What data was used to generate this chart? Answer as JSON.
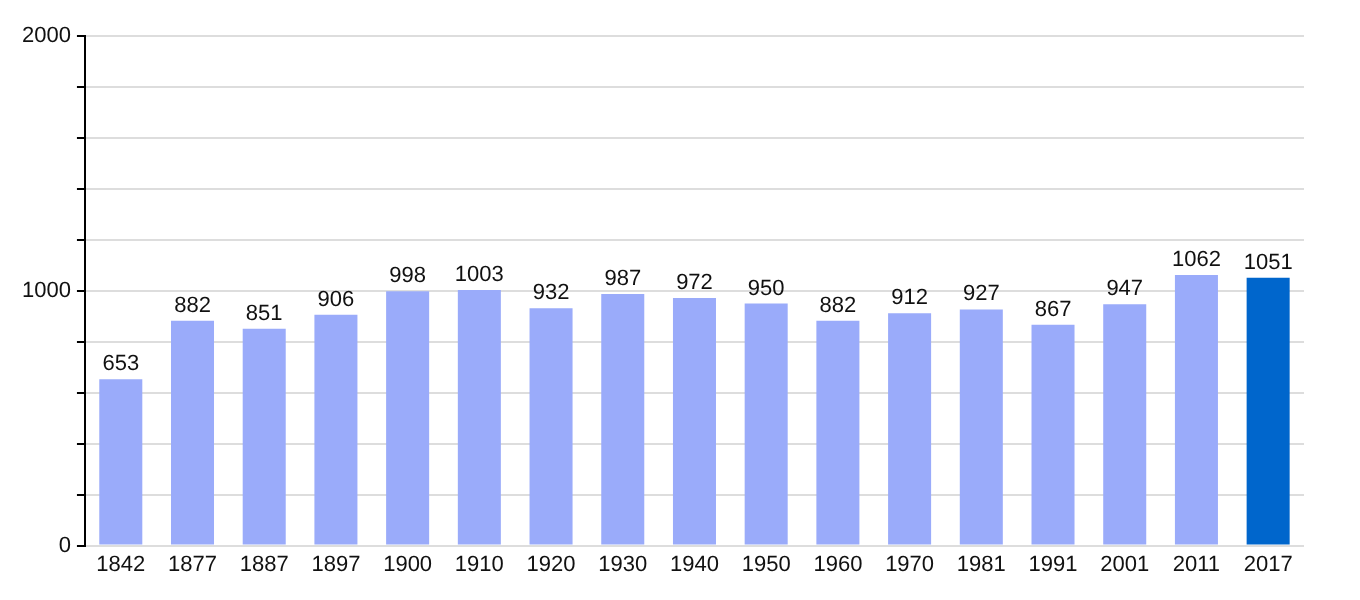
{
  "chart_data": {
    "type": "bar",
    "categories": [
      "1842",
      "1877",
      "1887",
      "1897",
      "1900",
      "1910",
      "1920",
      "1930",
      "1940",
      "1950",
      "1960",
      "1970",
      "1981",
      "1991",
      "2001",
      "2011",
      "2017"
    ],
    "values": [
      653,
      882,
      851,
      906,
      998,
      1003,
      932,
      987,
      972,
      950,
      882,
      912,
      927,
      867,
      947,
      1062,
      1051
    ],
    "colors": [
      "#9aabfa",
      "#9aabfa",
      "#9aabfa",
      "#9aabfa",
      "#9aabfa",
      "#9aabfa",
      "#9aabfa",
      "#9aabfa",
      "#9aabfa",
      "#9aabfa",
      "#9aabfa",
      "#9aabfa",
      "#9aabfa",
      "#9aabfa",
      "#9aabfa",
      "#9aabfa",
      "#0066cc"
    ],
    "ylim": [
      0,
      2000
    ],
    "yticks": [
      0,
      {
        "value": 200,
        "label": null
      },
      {
        "value": 400,
        "label": null
      },
      {
        "value": 600,
        "label": null
      },
      {
        "value": 800,
        "label": null
      },
      1000,
      {
        "value": 1200,
        "label": null
      },
      {
        "value": 1400,
        "label": null
      },
      {
        "value": 1600,
        "label": null
      },
      {
        "value": 1800,
        "label": null
      },
      2000
    ],
    "grid": "y",
    "data_labels": true
  }
}
